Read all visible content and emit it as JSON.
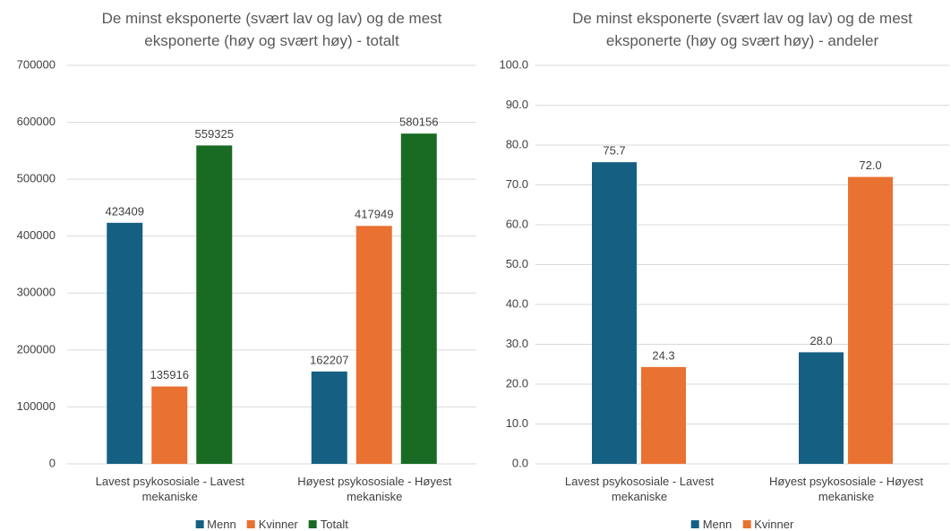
{
  "chart_data": [
    {
      "type": "bar",
      "title": "De minst eksponerte (svært lav og lav) og de mest eksponerte (høy og svært høy) - totalt",
      "categories": [
        "Lavest psykososiale - Lavest mekaniske",
        "Høyest psykososiale - Høyest mekaniske"
      ],
      "series": [
        {
          "name": "Menn",
          "color": "#156082",
          "values": [
            423409,
            162207
          ]
        },
        {
          "name": "Kvinner",
          "color": "#e97132",
          "values": [
            135916,
            417949
          ]
        },
        {
          "name": "Totalt",
          "color": "#196b24",
          "values": [
            559325,
            580156
          ]
        }
      ],
      "ylim": [
        0,
        700000
      ],
      "yticks": [
        0,
        100000,
        200000,
        300000,
        400000,
        500000,
        600000,
        700000
      ],
      "grid": true,
      "legend": "bottom"
    },
    {
      "type": "bar",
      "title": "De minst eksponerte (svært lav og lav) og de mest eksponerte (høy og svært høy) - andeler",
      "categories": [
        "Lavest psykososiale - Lavest mekaniske",
        "Høyest psykososiale - Høyest mekaniske"
      ],
      "series": [
        {
          "name": "Menn",
          "color": "#156082",
          "values": [
            75.7,
            28
          ],
          "value_labels": [
            "75.7",
            "28.0"
          ]
        },
        {
          "name": "Kvinner",
          "color": "#e97132",
          "values": [
            24.3,
            72
          ],
          "value_labels": [
            "24.3",
            "72.0"
          ]
        }
      ],
      "ylim": [
        0,
        100
      ],
      "yticks": [
        {
          "value": 0,
          "label": "0.0"
        },
        {
          "value": 10,
          "label": "10.0"
        },
        {
          "value": 20,
          "label": "20.0"
        },
        {
          "value": 30,
          "label": "30.0"
        },
        {
          "value": 40,
          "label": "40.0"
        },
        {
          "value": 50,
          "label": "50.0"
        },
        {
          "value": 60,
          "label": "60.0"
        },
        {
          "value": 70,
          "label": "70.0"
        },
        {
          "value": 80,
          "label": "80.0"
        },
        {
          "value": 90,
          "label": "90.0"
        },
        {
          "value": 100,
          "label": "100.0"
        }
      ],
      "grid": true,
      "legend": "bottom"
    }
  ]
}
